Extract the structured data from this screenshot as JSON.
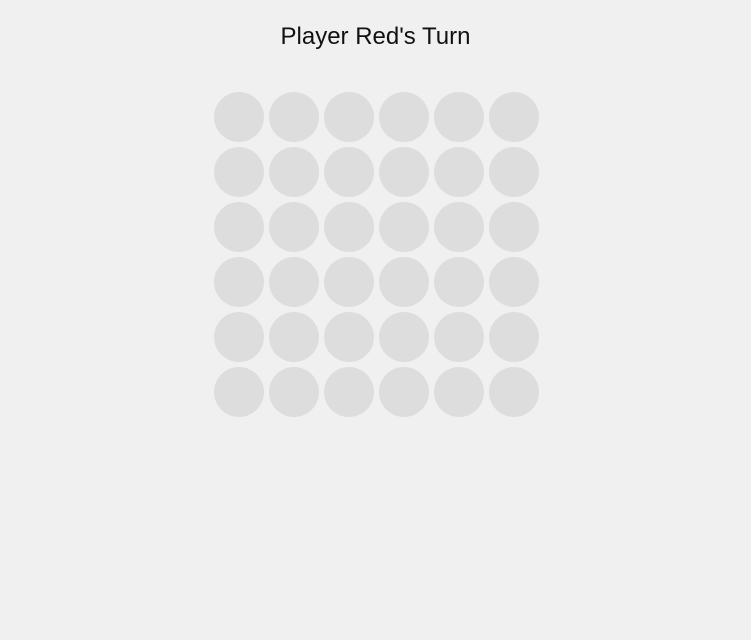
{
  "game": {
    "status_text": "Player Red's Turn",
    "current_player": "Red",
    "board": {
      "rows": 6,
      "columns": 6,
      "cells": [
        [
          "empty",
          "empty",
          "empty",
          "empty",
          "empty",
          "empty"
        ],
        [
          "empty",
          "empty",
          "empty",
          "empty",
          "empty",
          "empty"
        ],
        [
          "empty",
          "empty",
          "empty",
          "empty",
          "empty",
          "empty"
        ],
        [
          "empty",
          "empty",
          "empty",
          "empty",
          "empty",
          "empty"
        ],
        [
          "empty",
          "empty",
          "empty",
          "empty",
          "empty",
          "empty"
        ],
        [
          "empty",
          "empty",
          "empty",
          "empty",
          "empty",
          "empty"
        ]
      ]
    }
  },
  "colors": {
    "background": "#f0f0f0",
    "empty_cell": "#dddddd",
    "text": "#111111",
    "red": "#e53935",
    "yellow": "#fdd835"
  }
}
